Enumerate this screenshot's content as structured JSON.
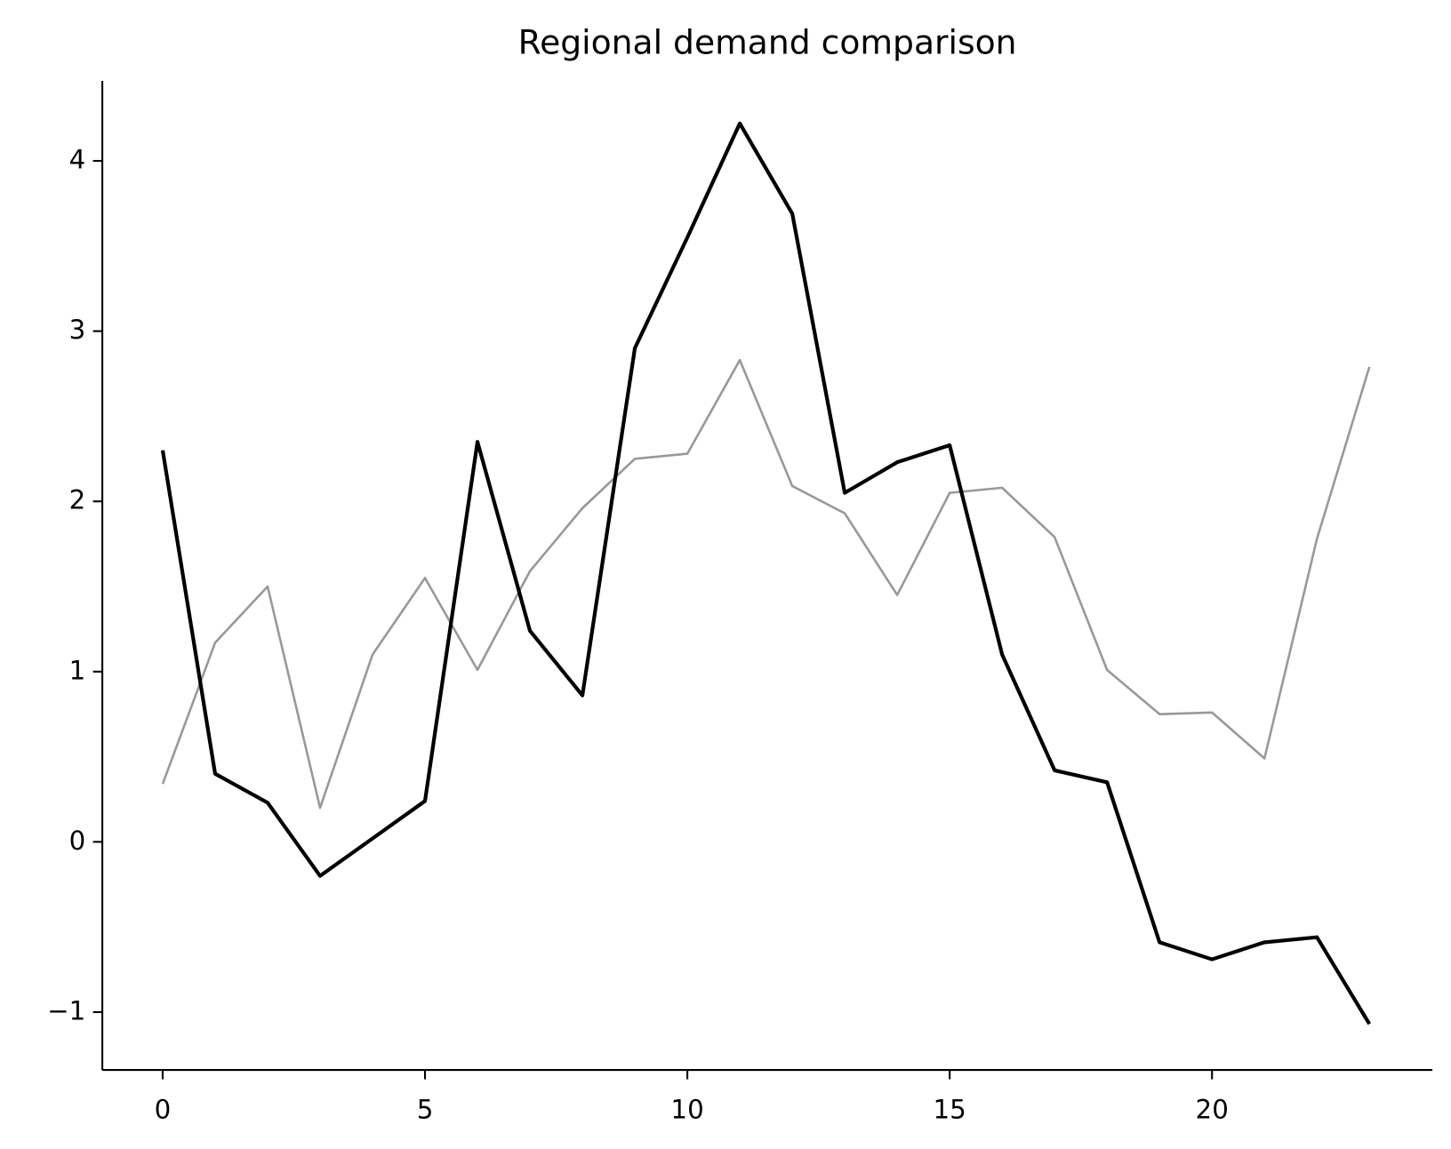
{
  "chart_data": {
    "type": "line",
    "title": "Regional demand comparison",
    "x": [
      0,
      1,
      2,
      3,
      4,
      5,
      6,
      7,
      8,
      9,
      10,
      11,
      12,
      13,
      14,
      15,
      16,
      17,
      18,
      19,
      20,
      21,
      22,
      23
    ],
    "series": [
      {
        "color": "#000000",
        "values": [
          2.3,
          0.4,
          0.23,
          -0.2,
          0.02,
          0.24,
          2.35,
          1.24,
          0.86,
          2.9,
          3.55,
          4.22,
          3.69,
          2.05,
          2.23,
          2.33,
          1.1,
          0.42,
          0.35,
          -0.59,
          -0.69,
          -0.59,
          -0.56,
          -1.07
        ]
      },
      {
        "color": "#999999",
        "values": [
          0.34,
          1.17,
          1.5,
          0.2,
          1.1,
          1.55,
          1.01,
          1.59,
          1.96,
          2.25,
          2.28,
          2.83,
          2.09,
          1.93,
          1.45,
          2.05,
          2.08,
          1.79,
          1.01,
          0.75,
          0.76,
          0.49,
          1.78,
          2.79
        ]
      }
    ],
    "xlim": [
      -1.15,
      24.2
    ],
    "ylim": [
      -1.34,
      4.47
    ],
    "xticks": [
      0,
      5,
      10,
      15,
      20
    ],
    "yticks": [
      {
        "value": -1,
        "label": "−1"
      },
      0,
      1,
      2,
      3,
      4
    ]
  }
}
